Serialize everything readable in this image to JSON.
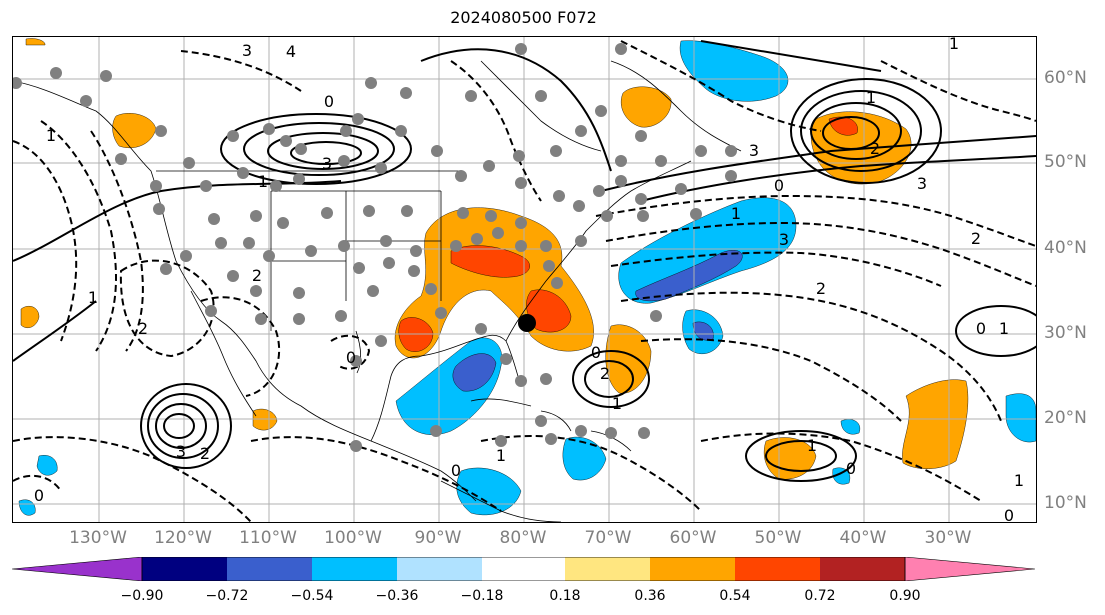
{
  "title": "2024080500 F072",
  "lon_labels": [
    "130°W",
    "120°W",
    "110°W",
    "100°W",
    "90°W",
    "80°W",
    "70°W",
    "60°W",
    "50°W",
    "40°W",
    "30°W"
  ],
  "lat_labels": [
    "60°N",
    "50°N",
    "40°N",
    "30°N",
    "20°N",
    "10°N"
  ],
  "colorbar": {
    "ticks": [
      "−0.90",
      "−0.72",
      "−0.54",
      "−0.36",
      "−0.18",
      "0.18",
      "0.36",
      "0.54",
      "0.72",
      "0.90"
    ],
    "colors": [
      "#9932cc",
      "#000080",
      "#3a5fcd",
      "#00bfff",
      "#b0e2ff",
      "#ffffff",
      "#ffe680",
      "#ffa500",
      "#ff4500",
      "#b22222",
      "#ff80b0"
    ]
  },
  "contour_labels": [
    "3",
    "4",
    "0",
    "3",
    "1",
    "1",
    "2",
    "2",
    "2",
    "3",
    "1",
    "2",
    "1",
    "1",
    "0",
    "0",
    "0",
    "1",
    "3",
    "2",
    "1",
    "2",
    "3",
    "0",
    "2",
    "1",
    "3",
    "1",
    "1",
    "0",
    "1",
    "0",
    "0",
    "0"
  ],
  "colors": {
    "positive": "#ffa500",
    "strong_positive": "#ff4500",
    "negative": "#00bfff",
    "strong_negative": "#3a5fcd",
    "station": "#808080",
    "grid": "#b0b0b0"
  }
}
